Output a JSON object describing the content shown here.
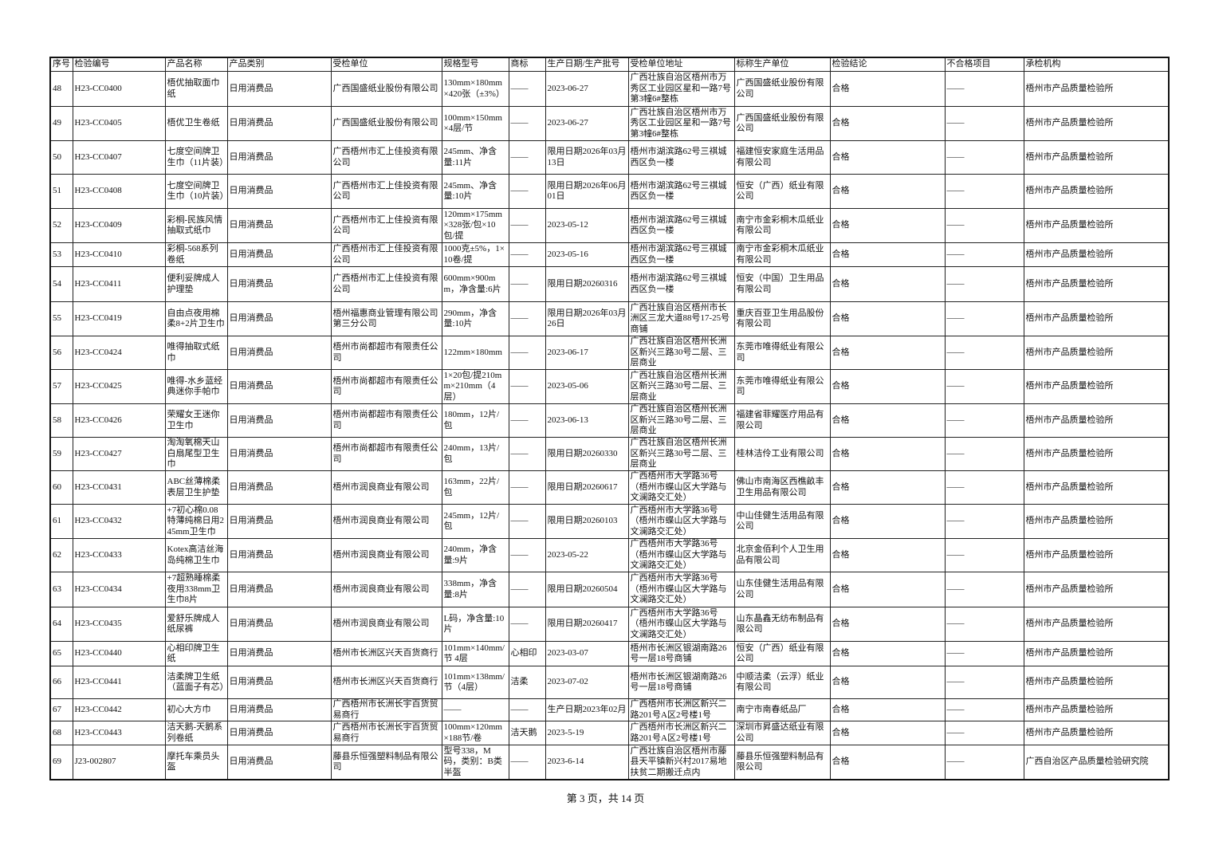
{
  "headers": [
    "序号",
    "检验编号",
    "产品名称",
    "产品类别",
    "受检单位",
    "规格型号",
    "商标",
    "生产日期/生产批号",
    "受检单位地址",
    "标称生产单位",
    "检验结论",
    "不合格项目",
    "承检机构"
  ],
  "rows": [
    [
      "48",
      "H23-CC0400",
      "梧优抽取面巾纸",
      "日用消费品",
      "广西国盛纸业股份有限公司",
      "130mm×180mm×420张（±3%）",
      "——",
      "2023-06-27",
      "广西壮族自治区梧州市万秀区工业园区星和一路7号第3幢6#整栋",
      "广西国盛纸业股份有限公司",
      "合格",
      "——",
      "梧州市产品质量检验所"
    ],
    [
      "49",
      "H23-CC0405",
      "梧优卫生卷纸",
      "日用消费品",
      "广西国盛纸业股份有限公司",
      "100mm×150mm×4层/节",
      "——",
      "2023-06-27",
      "广西壮族自治区梧州市万秀区工业园区星和一路7号第3幢6#整栋",
      "广西国盛纸业股份有限公司",
      "合格",
      "——",
      "梧州市产品质量检验所"
    ],
    [
      "50",
      "H23-CC0407",
      "七度空间牌卫生巾（11片装）",
      "日用消费品",
      "广西梧州市汇上佳投资有限公司",
      "245mm、净含量:11片",
      "——",
      "限用日期2026年03月13日",
      "梧州市湖滨路62号三祺城西区负一楼",
      "福建恒安家庭生活用品有限公司",
      "合格",
      "——",
      "梧州市产品质量检验所"
    ],
    [
      "51",
      "H23-CC0408",
      "七度空间牌卫生巾（10片装）",
      "日用消费品",
      "广西梧州市汇上佳投资有限公司",
      "245mm、净含量:10片",
      "——",
      "限用日期2026年06月01日",
      "梧州市湖滨路62号三祺城西区负一楼",
      "恒安（广西）纸业有限公司",
      "合格",
      "——",
      "梧州市产品质量检验所"
    ],
    [
      "52",
      "H23-CC0409",
      "彩桐-民族风情抽取式纸巾",
      "日用消费品",
      "广西梧州市汇上佳投资有限公司",
      "120mm×175mm×328张/包×10包/提",
      "——",
      "2023-05-12",
      "梧州市湖滨路62号三祺城西区负一楼",
      "南宁市金彩桐木瓜纸业有限公司",
      "合格",
      "——",
      "梧州市产品质量检验所"
    ],
    [
      "53",
      "H23-CC0410",
      "彩桐-568系列卷纸",
      "日用消费品",
      "广西梧州市汇上佳投资有限公司",
      "1000克±5%，1×10卷/提",
      "——",
      "2023-05-16",
      "梧州市湖滨路62号三祺城西区负一楼",
      "南宁市金彩桐木瓜纸业有限公司",
      "合格",
      "——",
      "梧州市产品质量检验所"
    ],
    [
      "54",
      "H23-CC0411",
      "便利妥牌成人护理垫",
      "日用消费品",
      "广西梧州市汇上佳投资有限公司",
      "600mm×900mm，净含量:6片",
      "——",
      "限用日期20260316",
      "梧州市湖滨路62号三祺城西区负一楼",
      "恒安（中国）卫生用品有限公司",
      "合格",
      "——",
      "梧州市产品质量检验所"
    ],
    [
      "55",
      "H23-CC0419",
      "自由点夜用棉柔8+2片卫生巾",
      "日用消费品",
      "梧州福惠商业管理有限公司第三分公司",
      "290mm，净含量:10片",
      "——",
      "限用日期2026年03月26日",
      "广西壮族自治区梧州市长洲区三龙大道88号17-25号商铺",
      "重庆百亚卫生用品股份有限公司",
      "合格",
      "——",
      "梧州市产品质量检验所"
    ],
    [
      "56",
      "H23-CC0424",
      "唯得抽取式纸巾",
      "日用消费品",
      "梧州市尚都超市有限责任公司",
      "122mm×180mm",
      "——",
      "2023-06-17",
      "广西壮族自治区梧州长洲区新兴三路30号二层、三层商业",
      "东莞市唯得纸业有限公司",
      "合格",
      "——",
      "梧州市产品质量检验所"
    ],
    [
      "57",
      "H23-CC0425",
      "唯得-水乡蓝经典迷你手帕巾",
      "日用消费品",
      "梧州市尚都超市有限责任公司",
      "1×20包/提210mm×210mm（4层）",
      "——",
      "2023-05-06",
      "广西壮族自治区梧州长洲区新兴三路30号二层、三层商业",
      "东莞市唯得纸业有限公司",
      "合格",
      "——",
      "梧州市产品质量检验所"
    ],
    [
      "58",
      "H23-CC0426",
      "荣耀女王迷你卫生巾",
      "日用消费品",
      "梧州市尚都超市有限责任公司",
      "180mm，12片/包",
      "——",
      "2023-06-13",
      "广西壮族自治区梧州长洲区新兴三路30号二层、三层商业",
      "福建省菲耀医疗用品有限公司",
      "合格",
      "——",
      "梧州市产品质量检验所"
    ],
    [
      "59",
      "H23-CC0427",
      "淘淘氧棉天山白扇尾型卫生巾",
      "日用消费品",
      "梧州市尚都超市有限责任公司",
      "240mm，13片/包",
      "——",
      "限用日期20260330",
      "广西壮族自治区梧州长洲区新兴三路30号二层、三层商业",
      "桂林洁伶工业有限公司",
      "合格",
      "——",
      "梧州市产品质量检验所"
    ],
    [
      "60",
      "H23-CC0431",
      "ABC丝薄棉柔表层卫生护垫",
      "日用消费品",
      "梧州市润良商业有限公司",
      "163mm，22片/包",
      "——",
      "限用日期20260617",
      "广西梧州市大学路36号（梧州市蝶山区大学路与文澜路交汇处）",
      "佛山市南海区西樵畝丰卫生用品有限公司",
      "合格",
      "——",
      "梧州市产品质量检验所"
    ],
    [
      "61",
      "H23-CC0432",
      "+7初心棉0.08特薄纯棉日用245mm卫生巾",
      "日用消费品",
      "梧州市润良商业有限公司",
      "245mm，12片/包",
      "——",
      "限用日期20260103",
      "广西梧州市大学路36号（梧州市蝶山区大学路与文澜路交汇处）",
      "中山佳健生活用品有限公司",
      "合格",
      "——",
      "梧州市产品质量检验所"
    ],
    [
      "62",
      "H23-CC0433",
      "Kotex高洁丝海岛纯棉卫生巾",
      "日用消费品",
      "梧州市润良商业有限公司",
      "240mm，净含量:9片",
      "——",
      "2023-05-22",
      "广西梧州市大学路36号（梧州市蝶山区大学路与文澜路交汇处）",
      "北京金佰利个人卫生用品有限公司",
      "合格",
      "——",
      "梧州市产品质量检验所"
    ],
    [
      "63",
      "H23-CC0434",
      "+7超熟睡棉柔夜用338mm卫生巾8片",
      "日用消费品",
      "梧州市润良商业有限公司",
      "338mm，净含量:8片",
      "——",
      "限用日期20260504",
      "广西梧州市大学路36号（梧州市蝶山区大学路与文澜路交汇处）",
      "山东佳健生活用品有限公司",
      "合格",
      "——",
      "梧州市产品质量检验所"
    ],
    [
      "64",
      "H23-CC0435",
      "爱舒乐牌成人纸尿裤",
      "日用消费品",
      "梧州市润良商业有限公司",
      "L码，净含量:10片",
      "——",
      "限用日期20260417",
      "广西梧州市大学路36号（梧州市蝶山区大学路与文澜路交汇处）",
      "山东晶鑫无纺布制品有限公司",
      "合格",
      "——",
      "梧州市产品质量检验所"
    ],
    [
      "65",
      "H23-CC0440",
      "心相印牌卫生纸",
      "日用消费品",
      "梧州市长洲区兴天百货商行",
      "101mm×140mm/节 4层",
      "心相印",
      "2023-03-07",
      "梧州市长洲区银湖南路26号一层18号商铺",
      "恒安（广西）纸业有限公司",
      "合格",
      "——",
      "梧州市产品质量检验所"
    ],
    [
      "66",
      "H23-CC0441",
      "洁柔牌卫生纸（蓝面子有芯）",
      "日用消费品",
      "梧州市长洲区兴天百货商行",
      "101mm×138mm/节（4层）",
      "洁柔",
      "2023-07-02",
      "梧州市长洲区银湖南路26号一层18号商铺",
      "中顺洁柔（云浮）纸业有限公司",
      "合格",
      "——",
      "梧州市产品质量检验所"
    ],
    [
      "67",
      "H23-CC0442",
      "初心大方巾",
      "日用消费品",
      "广西梧州市长洲长宇百货贸易商行",
      "——",
      "——",
      "生产日期2023年02月",
      "广西梧州市长洲区新兴二路201号A区2号楼1号",
      "南宁市南春纸品厂",
      "合格",
      "——",
      "梧州市产品质量检验所"
    ],
    [
      "68",
      "H23-CC0443",
      "洁天鹅-天鹅系列卷纸",
      "日用消费品",
      "广西梧州市长洲长宇百货贸易商行",
      "100mm×120mm×188节/卷",
      "洁天鹅",
      "2023-5-19",
      "广西梧州市长洲区新兴二路201号A区2号楼1号",
      "深圳市昇盛达纸业有限公司",
      "合格",
      "——",
      "梧州市产品质量检验所"
    ],
    [
      "69",
      "J23-002807",
      "摩托车乘员头盔",
      "日用消费品",
      "藤县乐恒强塑料制品有限公司",
      "型号338，M码，类别：B类半盔",
      "——",
      "2023-6-14",
      "广西壮族自治区梧州市藤县天平镇新兴村2017易地扶贫二期搬迁点内",
      "藤县乐恒强塑料制品有限公司",
      "合格",
      "——",
      "广西自治区产品质量检验研究院"
    ]
  ],
  "footer": "第 3 页，共 14 页"
}
